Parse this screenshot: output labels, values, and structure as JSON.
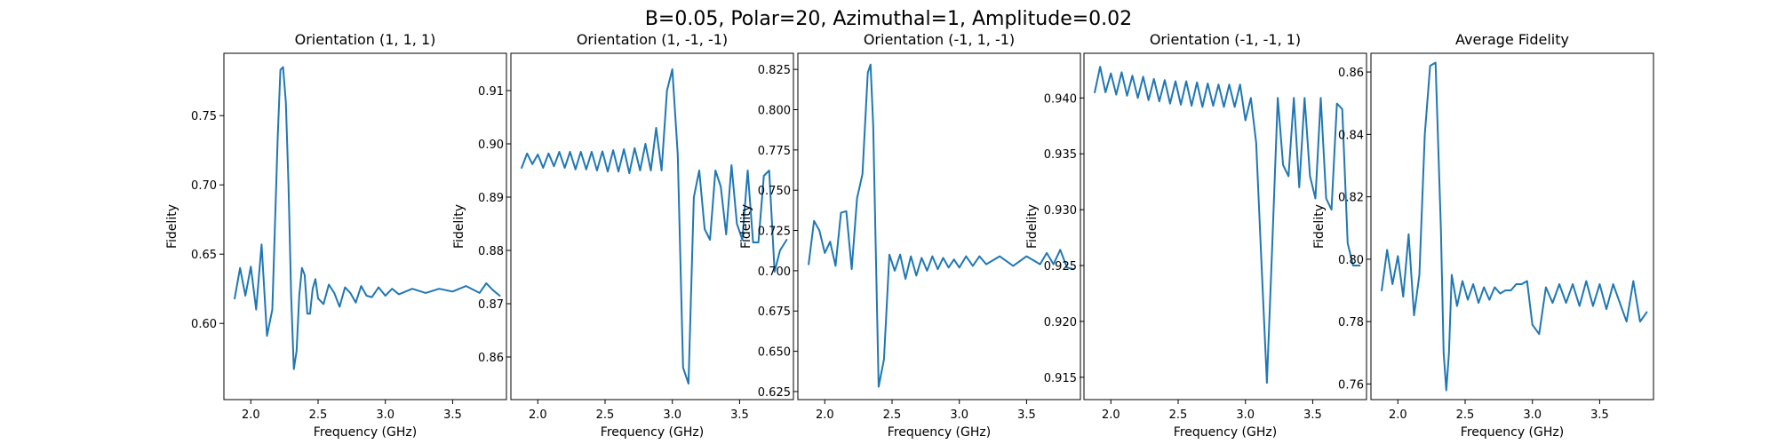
{
  "figure": {
    "suptitle": "B=0.05, Polar=20, Azimuthal=1, Amplitude=0.02",
    "line_color": "#1f77b4"
  },
  "chart_data": [
    {
      "type": "line",
      "title": "Orientation (1, 1, 1)",
      "xlabel": "Frequency (GHz)",
      "ylabel": "Fidelity",
      "xlim": [
        1.8,
        3.9
      ],
      "ylim": [
        0.545,
        0.795
      ],
      "xticks": [
        2.0,
        2.5,
        3.0,
        3.5
      ],
      "xtick_labels": [
        "2.0",
        "2.5",
        "3.0",
        "3.5"
      ],
      "yticks": [
        0.6,
        0.65,
        0.7,
        0.75
      ],
      "ytick_labels": [
        "0.60",
        "0.65",
        "0.70",
        "0.75"
      ],
      "series": [
        {
          "x": [
            1.88,
            1.92,
            1.96,
            2.0,
            2.04,
            2.08,
            2.12,
            2.16,
            2.2,
            2.22,
            2.24,
            2.26,
            2.28,
            2.3,
            2.32,
            2.34,
            2.36,
            2.38,
            2.4,
            2.42,
            2.44,
            2.46,
            2.48,
            2.5,
            2.54,
            2.58,
            2.62,
            2.66,
            2.7,
            2.74,
            2.78,
            2.82,
            2.86,
            2.9,
            2.95,
            3.0,
            3.05,
            3.1,
            3.2,
            3.3,
            3.4,
            3.5,
            3.6,
            3.7,
            3.75,
            3.8,
            3.85
          ],
          "y": [
            0.618,
            0.64,
            0.62,
            0.641,
            0.61,
            0.657,
            0.591,
            0.61,
            0.735,
            0.783,
            0.785,
            0.76,
            0.7,
            0.62,
            0.567,
            0.58,
            0.62,
            0.64,
            0.635,
            0.607,
            0.607,
            0.625,
            0.632,
            0.618,
            0.614,
            0.628,
            0.622,
            0.612,
            0.626,
            0.622,
            0.615,
            0.627,
            0.62,
            0.619,
            0.626,
            0.62,
            0.625,
            0.621,
            0.625,
            0.622,
            0.625,
            0.623,
            0.627,
            0.622,
            0.629,
            0.624,
            0.62
          ]
        }
      ]
    },
    {
      "type": "line",
      "title": "Orientation (1, -1, -1)",
      "xlabel": "Frequency (GHz)",
      "ylabel": "Fidelity",
      "xlim": [
        1.8,
        3.9
      ],
      "ylim": [
        0.852,
        0.917
      ],
      "xticks": [
        2.0,
        2.5,
        3.0,
        3.5
      ],
      "xtick_labels": [
        "2.0",
        "2.5",
        "3.0",
        "3.5"
      ],
      "yticks": [
        0.86,
        0.87,
        0.88,
        0.89,
        0.9,
        0.91
      ],
      "ytick_labels": [
        "0.86",
        "0.87",
        "0.88",
        "0.89",
        "0.90",
        "0.91"
      ],
      "series": [
        {
          "x": [
            1.88,
            1.92,
            1.96,
            2.0,
            2.04,
            2.08,
            2.12,
            2.16,
            2.2,
            2.24,
            2.28,
            2.32,
            2.36,
            2.4,
            2.44,
            2.48,
            2.52,
            2.56,
            2.6,
            2.64,
            2.68,
            2.72,
            2.76,
            2.8,
            2.84,
            2.88,
            2.92,
            2.96,
            3.0,
            3.04,
            3.08,
            3.12,
            3.16,
            3.2,
            3.24,
            3.28,
            3.32,
            3.36,
            3.4,
            3.44,
            3.48,
            3.52,
            3.56,
            3.6,
            3.64,
            3.68,
            3.72,
            3.76,
            3.8,
            3.85
          ],
          "y": [
            0.8955,
            0.8982,
            0.8962,
            0.898,
            0.8955,
            0.8982,
            0.8958,
            0.8985,
            0.8955,
            0.8985,
            0.8952,
            0.8985,
            0.8952,
            0.8985,
            0.895,
            0.8986,
            0.8948,
            0.8988,
            0.8948,
            0.899,
            0.8945,
            0.8992,
            0.895,
            0.9,
            0.895,
            0.903,
            0.895,
            0.91,
            0.914,
            0.898,
            0.858,
            0.855,
            0.89,
            0.895,
            0.884,
            0.882,
            0.895,
            0.892,
            0.883,
            0.896,
            0.885,
            0.882,
            0.895,
            0.8815,
            0.8815,
            0.894,
            0.895,
            0.876,
            0.88,
            0.882
          ]
        }
      ]
    },
    {
      "type": "line",
      "title": "Orientation (-1, 1, -1)",
      "xlabel": "Frequency (GHz)",
      "ylabel": "Fidelity",
      "xlim": [
        1.8,
        3.9
      ],
      "ylim": [
        0.62,
        0.835
      ],
      "xticks": [
        2.0,
        2.5,
        3.0,
        3.5
      ],
      "xtick_labels": [
        "2.0",
        "2.5",
        "3.0",
        "3.5"
      ],
      "yticks": [
        0.625,
        0.65,
        0.675,
        0.7,
        0.725,
        0.75,
        0.775,
        0.8,
        0.825
      ],
      "ytick_labels": [
        "0.625",
        "0.650",
        "0.675",
        "0.700",
        "0.725",
        "0.750",
        "0.775",
        "0.800",
        "0.825"
      ],
      "series": [
        {
          "x": [
            1.88,
            1.92,
            1.96,
            2.0,
            2.04,
            2.08,
            2.12,
            2.16,
            2.2,
            2.24,
            2.28,
            2.32,
            2.34,
            2.36,
            2.38,
            2.4,
            2.44,
            2.48,
            2.52,
            2.56,
            2.6,
            2.64,
            2.68,
            2.72,
            2.76,
            2.8,
            2.84,
            2.88,
            2.92,
            2.96,
            3.0,
            3.05,
            3.1,
            3.15,
            3.2,
            3.3,
            3.4,
            3.5,
            3.6,
            3.65,
            3.7,
            3.75,
            3.8,
            3.85
          ],
          "y": [
            0.704,
            0.731,
            0.725,
            0.711,
            0.718,
            0.703,
            0.736,
            0.737,
            0.701,
            0.745,
            0.76,
            0.823,
            0.828,
            0.79,
            0.71,
            0.628,
            0.645,
            0.71,
            0.7,
            0.71,
            0.695,
            0.709,
            0.697,
            0.708,
            0.7,
            0.709,
            0.701,
            0.708,
            0.702,
            0.707,
            0.702,
            0.709,
            0.703,
            0.709,
            0.704,
            0.709,
            0.703,
            0.709,
            0.704,
            0.711,
            0.704,
            0.713,
            0.702,
            0.701
          ]
        }
      ]
    },
    {
      "type": "line",
      "title": "Orientation (-1, -1, 1)",
      "xlabel": "Frequency (GHz)",
      "ylabel": "Fidelity",
      "xlim": [
        1.8,
        3.9
      ],
      "ylim": [
        0.913,
        0.944
      ],
      "xticks": [
        2.0,
        2.5,
        3.0,
        3.5
      ],
      "xtick_labels": [
        "2.0",
        "2.5",
        "3.0",
        "3.5"
      ],
      "yticks": [
        0.915,
        0.92,
        0.925,
        0.93,
        0.935,
        0.94
      ],
      "ytick_labels": [
        "0.915",
        "0.920",
        "0.925",
        "0.930",
        "0.935",
        "0.940"
      ],
      "series": [
        {
          "x": [
            1.88,
            1.92,
            1.96,
            2.0,
            2.04,
            2.08,
            2.12,
            2.16,
            2.2,
            2.24,
            2.28,
            2.32,
            2.36,
            2.4,
            2.44,
            2.48,
            2.52,
            2.56,
            2.6,
            2.64,
            2.68,
            2.72,
            2.76,
            2.8,
            2.84,
            2.88,
            2.92,
            2.96,
            3.0,
            3.04,
            3.08,
            3.12,
            3.16,
            3.2,
            3.24,
            3.28,
            3.32,
            3.36,
            3.4,
            3.44,
            3.48,
            3.52,
            3.56,
            3.6,
            3.64,
            3.68,
            3.72,
            3.76,
            3.8,
            3.85
          ],
          "y": [
            0.9405,
            0.9428,
            0.9405,
            0.9422,
            0.9403,
            0.9423,
            0.9402,
            0.942,
            0.94,
            0.9419,
            0.9398,
            0.9417,
            0.9397,
            0.9416,
            0.9395,
            0.9415,
            0.9394,
            0.9415,
            0.9393,
            0.9414,
            0.9392,
            0.9413,
            0.9393,
            0.9412,
            0.9392,
            0.9412,
            0.9392,
            0.9412,
            0.938,
            0.94,
            0.936,
            0.925,
            0.9145,
            0.927,
            0.94,
            0.934,
            0.933,
            0.94,
            0.932,
            0.94,
            0.933,
            0.931,
            0.94,
            0.931,
            0.93,
            0.9395,
            0.939,
            0.927,
            0.925,
            0.925
          ]
        }
      ]
    },
    {
      "type": "line",
      "title": "Average Fidelity",
      "xlabel": "Frequency (GHz)",
      "ylabel": "Fidelity",
      "xlim": [
        1.8,
        3.9
      ],
      "ylim": [
        0.755,
        0.866
      ],
      "xticks": [
        2.0,
        2.5,
        3.0,
        3.5
      ],
      "xtick_labels": [
        "2.0",
        "2.5",
        "3.0",
        "3.5"
      ],
      "yticks": [
        0.76,
        0.78,
        0.8,
        0.82,
        0.84,
        0.86
      ],
      "ytick_labels": [
        "0.76",
        "0.78",
        "0.80",
        "0.82",
        "0.84",
        "0.86"
      ],
      "series": [
        {
          "x": [
            1.88,
            1.92,
            1.96,
            2.0,
            2.04,
            2.08,
            2.12,
            2.16,
            2.2,
            2.24,
            2.28,
            2.32,
            2.34,
            2.36,
            2.38,
            2.4,
            2.44,
            2.48,
            2.52,
            2.56,
            2.6,
            2.64,
            2.68,
            2.72,
            2.76,
            2.8,
            2.84,
            2.88,
            2.92,
            2.96,
            3.0,
            3.05,
            3.1,
            3.15,
            3.2,
            3.25,
            3.3,
            3.35,
            3.4,
            3.45,
            3.5,
            3.55,
            3.6,
            3.65,
            3.7,
            3.75,
            3.8,
            3.85
          ],
          "y": [
            0.79,
            0.803,
            0.792,
            0.801,
            0.788,
            0.808,
            0.782,
            0.795,
            0.84,
            0.862,
            0.863,
            0.81,
            0.77,
            0.758,
            0.77,
            0.795,
            0.785,
            0.793,
            0.787,
            0.792,
            0.786,
            0.791,
            0.787,
            0.791,
            0.789,
            0.79,
            0.79,
            0.792,
            0.792,
            0.793,
            0.779,
            0.776,
            0.791,
            0.786,
            0.792,
            0.786,
            0.792,
            0.785,
            0.793,
            0.785,
            0.792,
            0.784,
            0.792,
            0.786,
            0.78,
            0.793,
            0.78,
            0.783
          ]
        }
      ]
    }
  ]
}
